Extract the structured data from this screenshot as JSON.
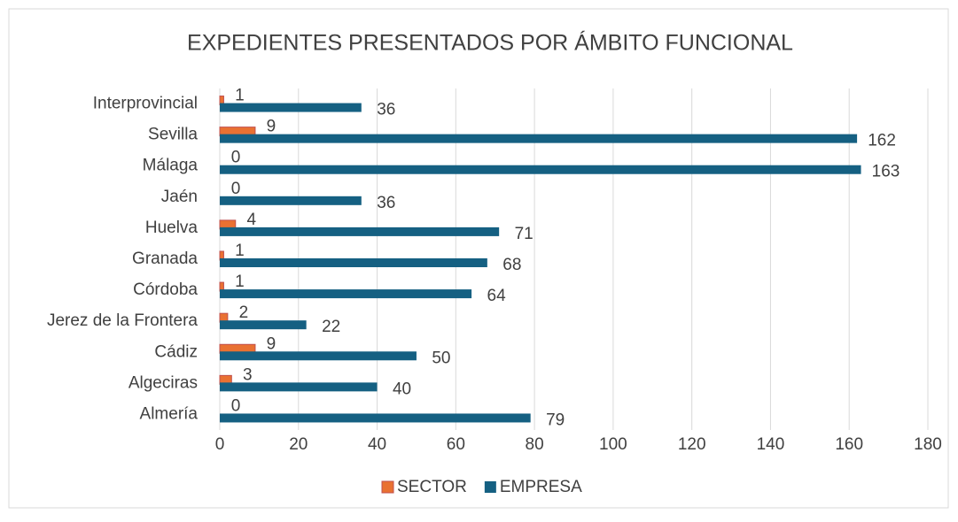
{
  "chart_data": {
    "type": "hbar",
    "title": "EXPEDIENTES PRESENTADOS POR ÁMBITO FUNCIONAL",
    "categories": [
      "Interprovincial",
      "Sevilla",
      "Málaga",
      "Jaén",
      "Huelva",
      "Granada",
      "Córdoba",
      "Jerez de la Frontera",
      "Cádiz",
      "Algeciras",
      "Almería"
    ],
    "series": [
      {
        "name": "SECTOR",
        "color": "#e97132",
        "values": [
          1,
          9,
          0,
          0,
          4,
          1,
          1,
          2,
          9,
          3,
          0
        ]
      },
      {
        "name": "EMPRESA",
        "color": "#156082",
        "values": [
          36,
          162,
          163,
          36,
          71,
          68,
          64,
          22,
          50,
          40,
          79
        ]
      }
    ],
    "xlim": [
      0,
      180
    ],
    "xticks": [
      0,
      20,
      40,
      60,
      80,
      100,
      120,
      140,
      160,
      180
    ],
    "grid": true,
    "legend": "bottom"
  }
}
